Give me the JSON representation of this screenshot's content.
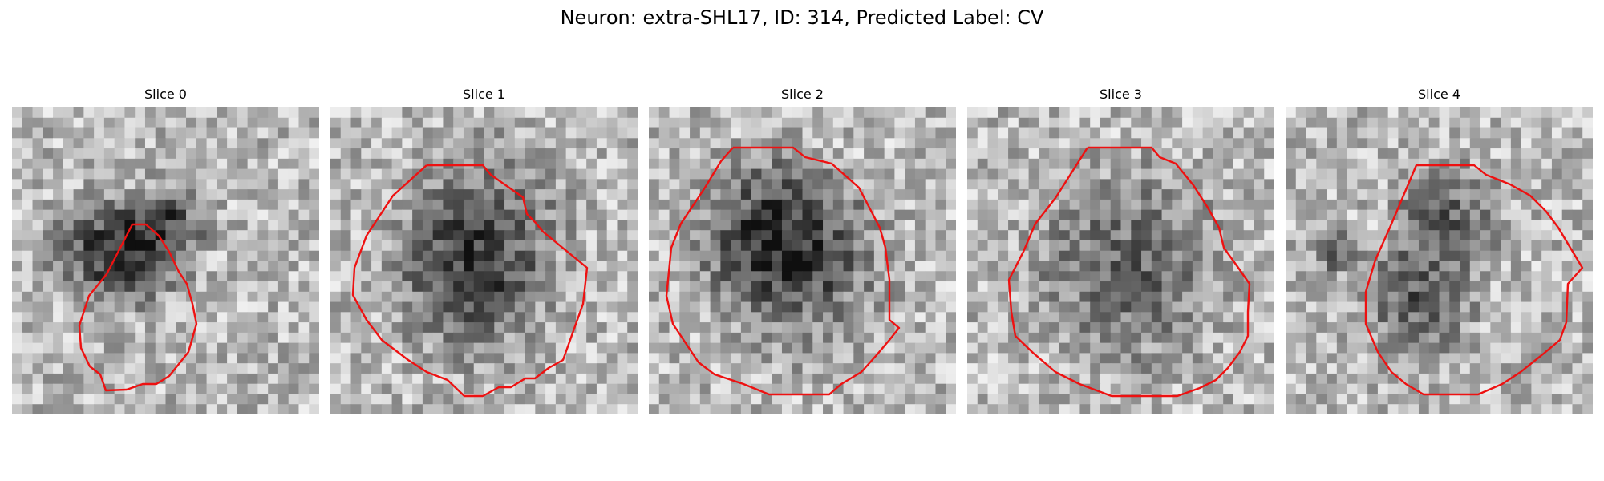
{
  "title": "Neuron: extra-SHL17, ID: 314, Predicted Label: CV",
  "contour_color": "#ee1111",
  "image_colormap": "grayscale",
  "slices": [
    {
      "label": "Slice 0"
    },
    {
      "label": "Slice 1"
    },
    {
      "label": "Slice 2"
    },
    {
      "label": "Slice 3"
    },
    {
      "label": "Slice 4"
    }
  ]
}
